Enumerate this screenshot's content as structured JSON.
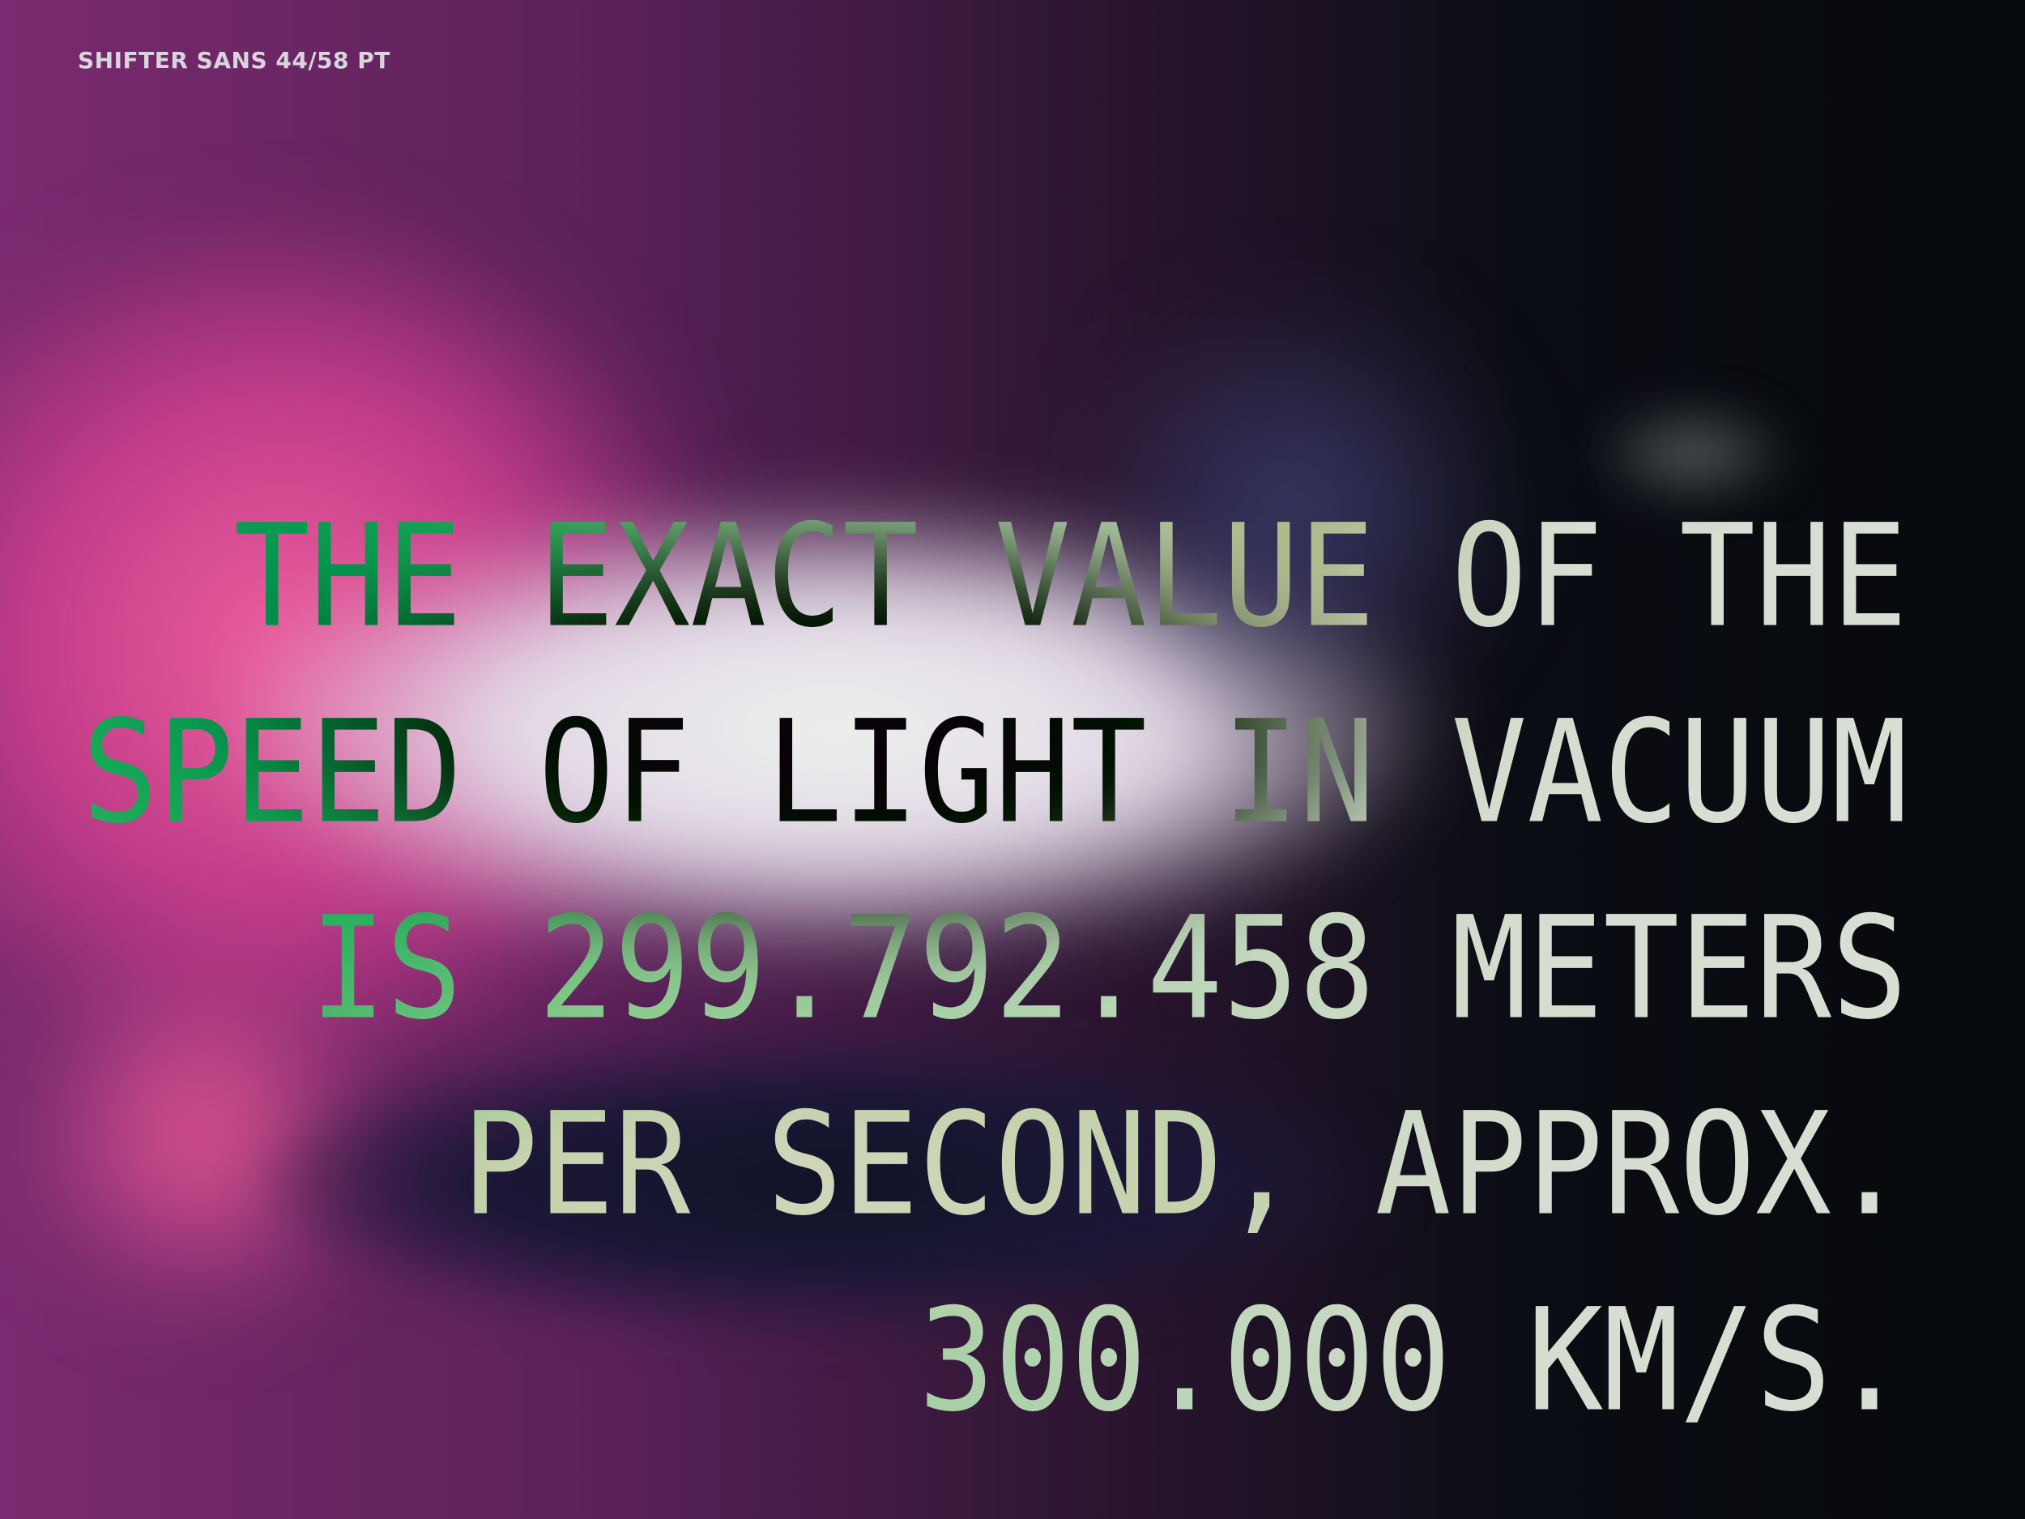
{
  "caption": "SHIFTER SANS 44/58 PT",
  "lines": [
    "THE EXACT VALUE OF THE",
    "SPEED OF LIGHT IN VACUUM",
    "IS 299.792.458 METERS",
    "PER SECOND, APPROX.",
    "300.000 KM/S."
  ]
}
